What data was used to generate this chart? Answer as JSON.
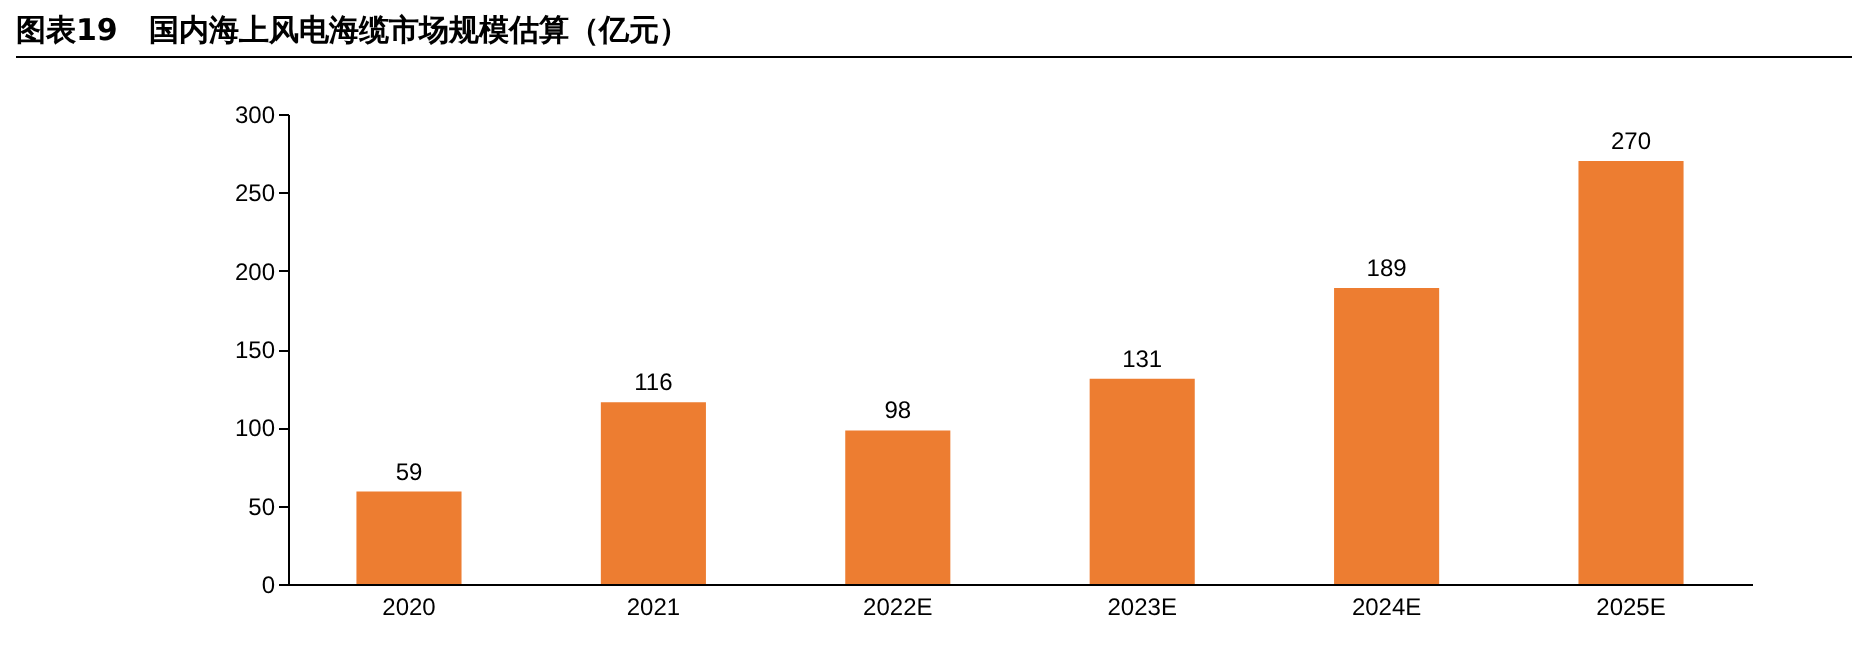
{
  "chart_data": {
    "type": "bar",
    "title": "图表19   国内海上风电海缆市场规模估算（亿元）",
    "categories": [
      "2020",
      "2021",
      "2022E",
      "2023E",
      "2024E",
      "2025E"
    ],
    "values": [
      59,
      116,
      98,
      131,
      189,
      270
    ],
    "color": "#ed7d31",
    "ylim": [
      0,
      300
    ],
    "yticks": [
      0,
      50,
      100,
      150,
      200,
      250,
      300
    ],
    "data_labels": true,
    "grid": false
  }
}
